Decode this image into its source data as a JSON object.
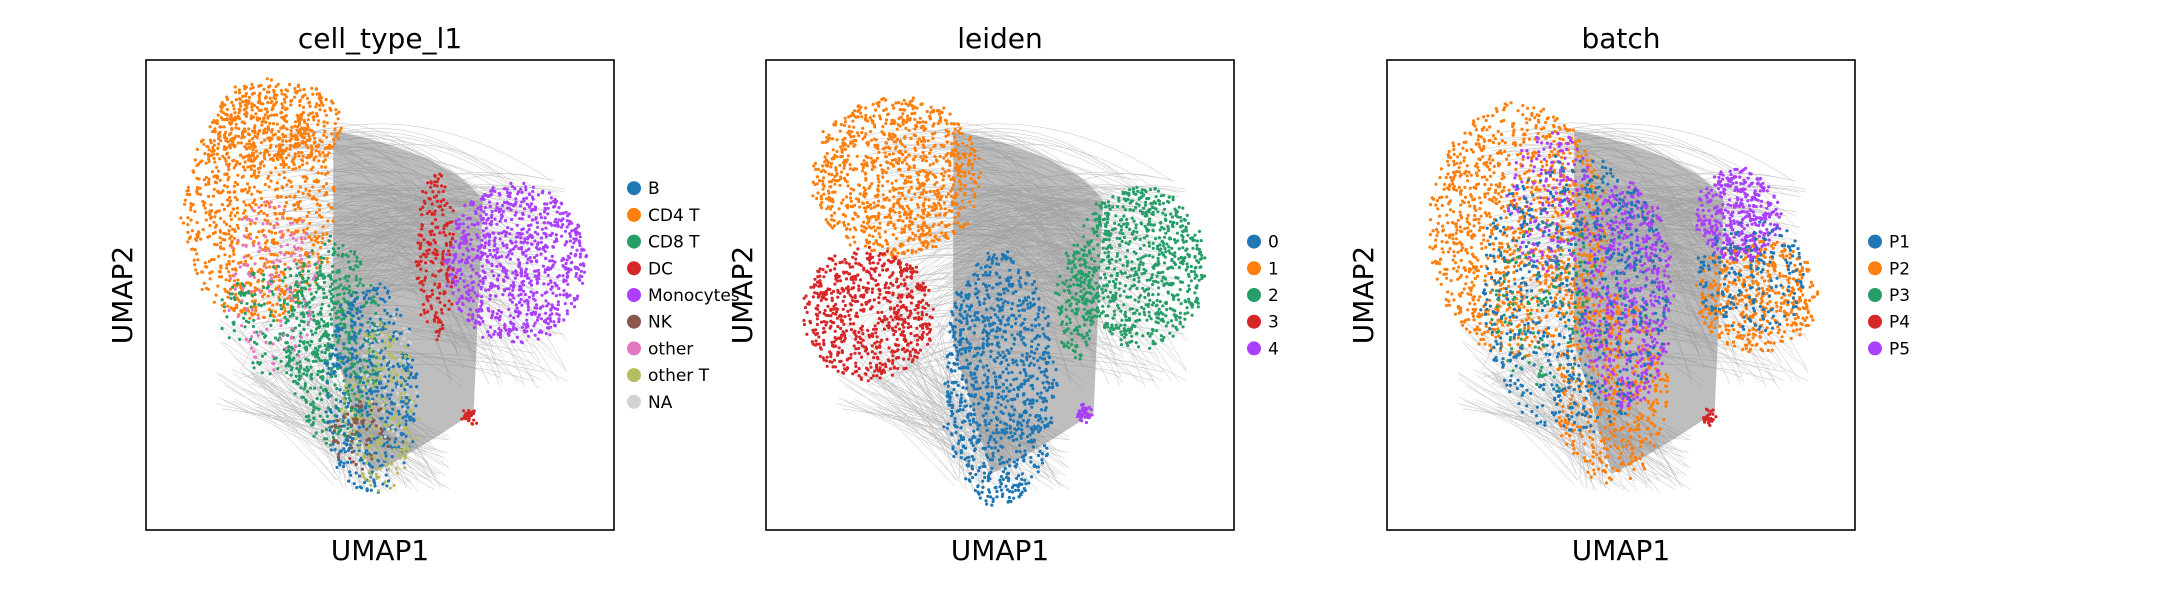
{
  "chart_data": [
    {
      "type": "scatter",
      "title": "cell_type_l1",
      "xlabel": "UMAP1",
      "ylabel": "UMAP2",
      "grid": false,
      "legend_position": "right",
      "series": [
        {
          "name": "B",
          "color": "#1f77b4"
        },
        {
          "name": "CD4 T",
          "color": "#ff7f0e"
        },
        {
          "name": "CD8 T",
          "color": "#279e68"
        },
        {
          "name": "DC",
          "color": "#d62728"
        },
        {
          "name": "Monocytes",
          "color": "#aa40fc"
        },
        {
          "name": "NK",
          "color": "#8c564b"
        },
        {
          "name": "other",
          "color": "#e377c2"
        },
        {
          "name": "other T",
          "color": "#b5bd61"
        },
        {
          "name": "NA",
          "color": "#d3d3d3"
        }
      ]
    },
    {
      "type": "scatter",
      "title": "leiden",
      "xlabel": "UMAP1",
      "ylabel": "UMAP2",
      "grid": false,
      "legend_position": "right",
      "series": [
        {
          "name": "0",
          "color": "#1f77b4"
        },
        {
          "name": "1",
          "color": "#ff7f0e"
        },
        {
          "name": "2",
          "color": "#279e68"
        },
        {
          "name": "3",
          "color": "#d62728"
        },
        {
          "name": "4",
          "color": "#aa40fc"
        }
      ]
    },
    {
      "type": "scatter",
      "title": "batch",
      "xlabel": "UMAP1",
      "ylabel": "UMAP2",
      "grid": false,
      "legend_position": "right",
      "series": [
        {
          "name": "P1",
          "color": "#1f77b4"
        },
        {
          "name": "P2",
          "color": "#ff7f0e"
        },
        {
          "name": "P3",
          "color": "#279e68"
        },
        {
          "name": "P4",
          "color": "#d62728"
        },
        {
          "name": "P5",
          "color": "#aa40fc"
        }
      ]
    }
  ]
}
